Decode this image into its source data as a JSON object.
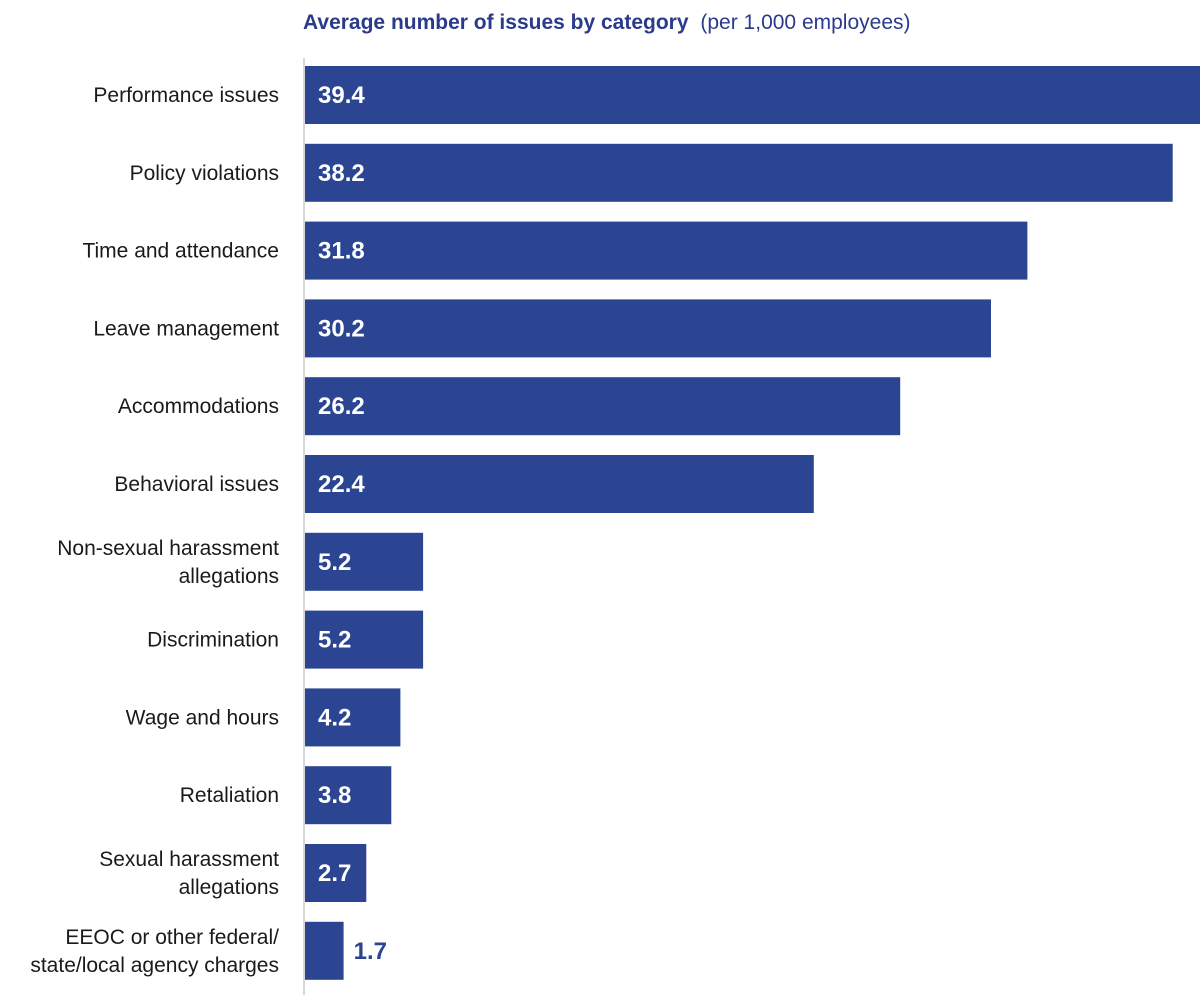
{
  "chart_data": {
    "type": "bar",
    "orientation": "horizontal",
    "title": "Average number of issues by category",
    "subtitle": "(per 1,000 employees)",
    "xlabel": "",
    "ylabel": "",
    "xlim": [
      0,
      40
    ],
    "grid": false,
    "bar_color": "#2b4593",
    "categories": [
      [
        "Performance issues"
      ],
      [
        "Policy violations"
      ],
      [
        "Time and attendance"
      ],
      [
        "Leave management"
      ],
      [
        "Accommodations"
      ],
      [
        "Behavioral issues"
      ],
      [
        "Non-sexual harassment",
        "allegations"
      ],
      [
        "Discrimination"
      ],
      [
        "Wage and hours"
      ],
      [
        "Retaliation"
      ],
      [
        "Sexual harassment",
        "allegations"
      ],
      [
        "EEOC or other federal/",
        "state/local agency charges"
      ]
    ],
    "values": [
      39.4,
      38.2,
      31.8,
      30.2,
      26.2,
      22.4,
      5.2,
      5.2,
      4.2,
      3.8,
      2.7,
      1.7
    ],
    "value_labels": [
      "39.4",
      "38.2",
      "31.8",
      "30.2",
      "26.2",
      "22.4",
      "5.2",
      "5.2",
      "4.2",
      "3.8",
      "2.7",
      "1.7"
    ]
  }
}
